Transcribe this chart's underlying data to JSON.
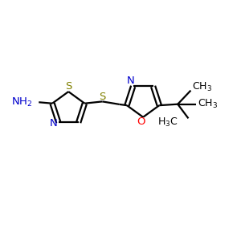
{
  "bg_color": "#ffffff",
  "bond_color": "#000000",
  "N_color": "#0000cd",
  "S_color": "#808000",
  "O_color": "#ff0000",
  "line_width": 1.6,
  "font_size": 9.5,
  "fig_size": [
    3.0,
    3.0
  ],
  "dpi": 100,
  "xlim": [
    0,
    10
  ],
  "ylim": [
    0,
    10
  ]
}
